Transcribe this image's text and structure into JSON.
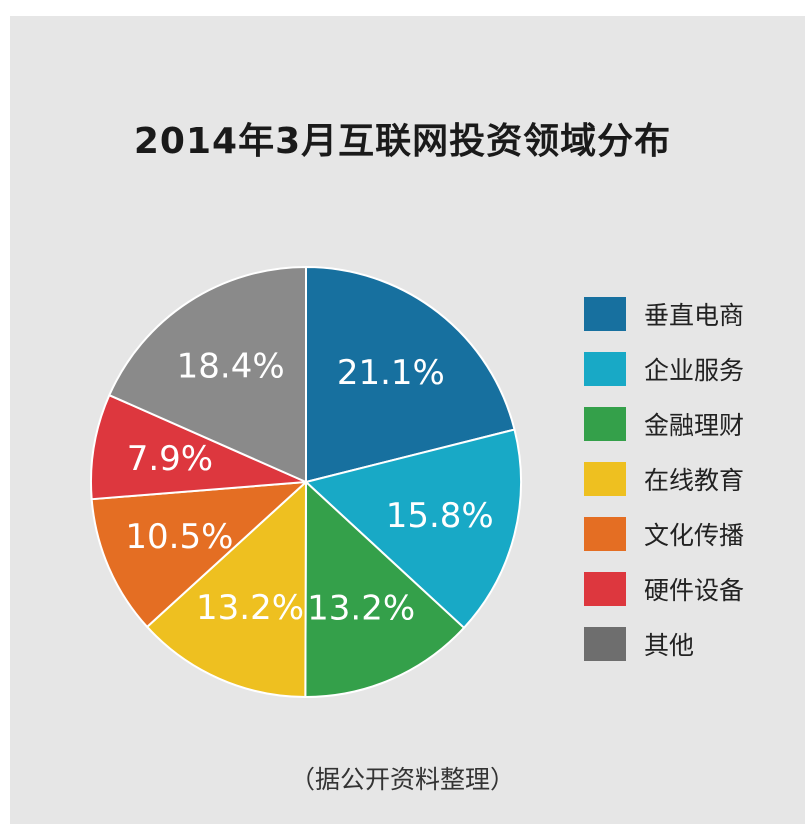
{
  "chart_data": {
    "type": "pie",
    "title": "2014年3月互联网投资领域分布",
    "categories": [
      "垂直电商",
      "企业服务",
      "金融理财",
      "在线教育",
      "文化传播",
      "硬件设备",
      "其他"
    ],
    "values": [
      21.1,
      15.8,
      13.2,
      13.2,
      10.5,
      7.9,
      18.4
    ],
    "data_labels": [
      "21.1%",
      "15.8%",
      "13.2%",
      "13.2%",
      "10.5%",
      "7.9%",
      "18.4%"
    ],
    "colors": [
      "#17709f",
      "#18a9c6",
      "#34a04a",
      "#eec020",
      "#e46e23",
      "#dd373e",
      "#8a8a8a"
    ],
    "legend_swatch_colors": [
      "#17709f",
      "#18a9c6",
      "#34a04a",
      "#eec020",
      "#e46e23",
      "#dd373e",
      "#6e6e6e"
    ],
    "start": "12 o'clock",
    "direction": "clockwise",
    "legend_position": "right",
    "source_note": "（据公开资料整理）"
  }
}
